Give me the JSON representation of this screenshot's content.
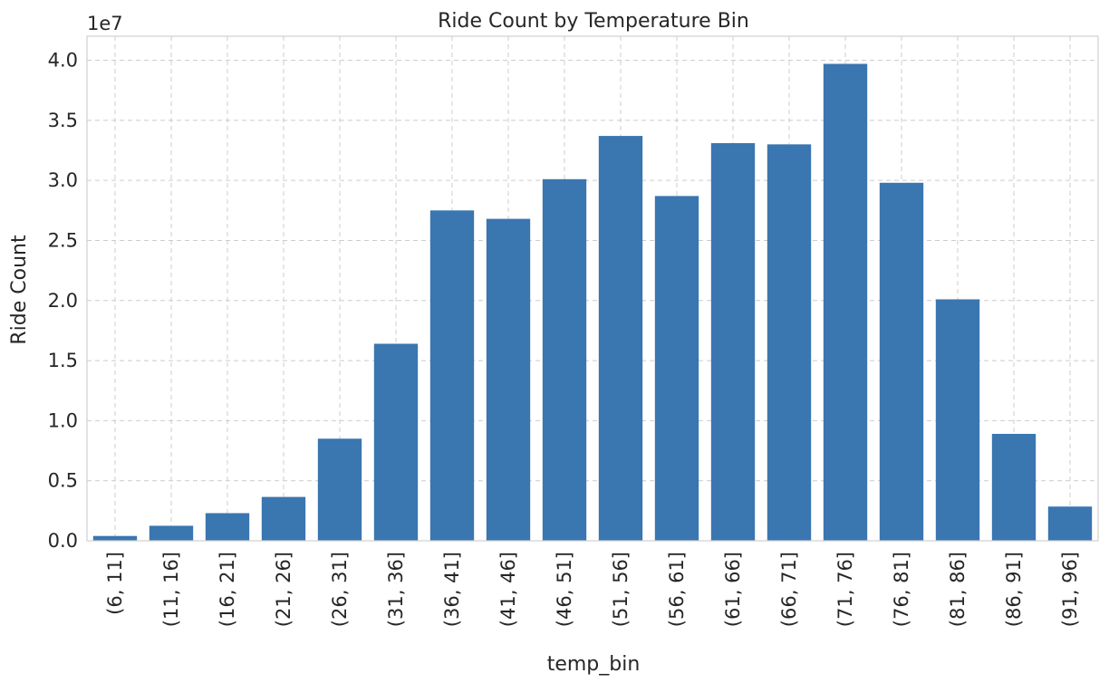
{
  "chart_data": {
    "type": "bar",
    "title": "Ride Count by Temperature Bin",
    "xlabel": "temp_bin",
    "ylabel": "Ride Count",
    "y_offset_label": "1e7",
    "y_scale": 10000000,
    "ylim": [
      0,
      4.2
    ],
    "yticks": [
      "0.0",
      "0.5",
      "1.0",
      "1.5",
      "2.0",
      "2.5",
      "3.0",
      "3.5",
      "4.0"
    ],
    "grid": true,
    "bar_color": "#3a76b0",
    "categories": [
      "(6, 11]",
      "(11, 16]",
      "(16, 21]",
      "(21, 26]",
      "(26, 31]",
      "(31, 36]",
      "(36, 41]",
      "(41, 46]",
      "(46, 51]",
      "(51, 56]",
      "(56, 61]",
      "(61, 66]",
      "(66, 71]",
      "(71, 76]",
      "(76, 81]",
      "(81, 86]",
      "(86, 91]",
      "(91, 96]"
    ],
    "values": [
      400000,
      1250000,
      2300000,
      3650000,
      8500000,
      16400000,
      27500000,
      26800000,
      30100000,
      33700000,
      28700000,
      33100000,
      33000000,
      39700000,
      29800000,
      20100000,
      8900000,
      2850000
    ]
  }
}
